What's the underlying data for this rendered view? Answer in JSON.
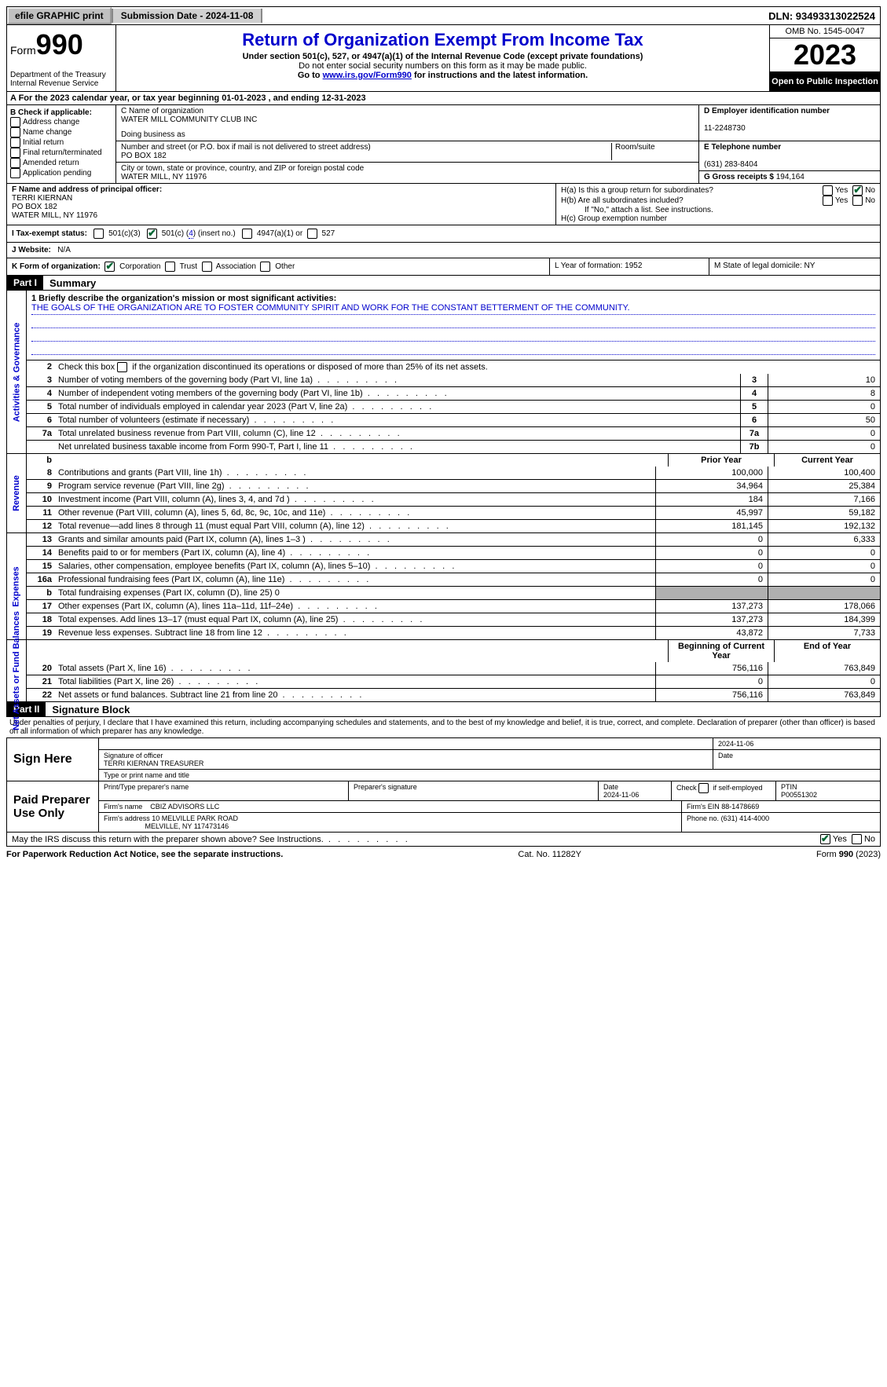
{
  "top": {
    "efile": "efile GRAPHIC print",
    "submission": "Submission Date - 2024-11-08",
    "dln": "DLN: 93493313022524"
  },
  "header": {
    "form_word": "Form",
    "form_num": "990",
    "dept": "Department of the Treasury Internal Revenue Service",
    "title": "Return of Organization Exempt From Income Tax",
    "sub1": "Under section 501(c), 527, or 4947(a)(1) of the Internal Revenue Code (except private foundations)",
    "sub2": "Do not enter social security numbers on this form as it may be made public.",
    "sub3_pre": "Go to ",
    "sub3_link": "www.irs.gov/Form990",
    "sub3_post": " for instructions and the latest information.",
    "omb": "OMB No. 1545-0047",
    "year": "2023",
    "open": "Open to Public Inspection"
  },
  "rowA": "A   For the 2023 calendar year, or tax year beginning 01-01-2023    , and ending 12-31-2023",
  "colB": {
    "title": "B Check if applicable:",
    "opts": [
      "Address change",
      "Name change",
      "Initial return",
      "Final return/terminated",
      "Amended return",
      "Application pending"
    ]
  },
  "colC": {
    "name_lbl": "C Name of organization",
    "name": "WATER MILL COMMUNITY CLUB INC",
    "dba_lbl": "Doing business as",
    "addr_lbl": "Number and street (or P.O. box if mail is not delivered to street address)",
    "addr": "PO BOX 182",
    "room_lbl": "Room/suite",
    "city_lbl": "City or town, state or province, country, and ZIP or foreign postal code",
    "city": "WATER MILL, NY  11976"
  },
  "colD": {
    "ein_lbl": "D Employer identification number",
    "ein": "11-2248730",
    "tel_lbl": "E Telephone number",
    "tel": "(631) 283-8404",
    "gross_lbl": "G Gross receipts $",
    "gross": "194,164"
  },
  "rowF": {
    "lbl": "F  Name and address of principal officer:",
    "name": "TERRI KIERNAN",
    "addr1": "PO BOX 182",
    "addr2": "WATER MILL, NY  11976"
  },
  "rowH": {
    "ha": "H(a)  Is this a group return for subordinates?",
    "hb": "H(b)  Are all subordinates included?",
    "hb_note": "If \"No,\" attach a list. See instructions.",
    "hc": "H(c)  Group exemption number"
  },
  "rowI": {
    "lbl": "I    Tax-exempt status:",
    "o1": "501(c)(3)",
    "o2a": "501(c) (",
    "o2b": "4",
    "o2c": ") (insert no.)",
    "o3": "4947(a)(1) or",
    "o4": "527"
  },
  "rowJ": {
    "lbl": "J    Website:",
    "val": "N/A"
  },
  "rowK": {
    "lbl": "K Form of organization:",
    "opts": [
      "Corporation",
      "Trust",
      "Association",
      "Other"
    ],
    "L": "L Year of formation: 1952",
    "M": "M State of legal domicile: NY"
  },
  "part1": {
    "hdr": "Part I",
    "title": "Summary"
  },
  "mission": {
    "lbl": "1  Briefly describe the organization's mission or most significant activities:",
    "text": "THE GOALS OF THE ORGANIZATION ARE TO FOSTER COMMUNITY SPIRIT AND WORK FOR THE CONSTANT BETTERMENT OF THE COMMUNITY."
  },
  "line2": "Check this box         if the organization discontinued its operations or disposed of more than 25% of its net assets.",
  "gov_lines": [
    {
      "n": "3",
      "d": "Number of voting members of the governing body (Part VI, line 1a)",
      "ln": "3",
      "v": "10"
    },
    {
      "n": "4",
      "d": "Number of independent voting members of the governing body (Part VI, line 1b)",
      "ln": "4",
      "v": "8"
    },
    {
      "n": "5",
      "d": "Total number of individuals employed in calendar year 2023 (Part V, line 2a)",
      "ln": "5",
      "v": "0"
    },
    {
      "n": "6",
      "d": "Total number of volunteers (estimate if necessary)",
      "ln": "6",
      "v": "50"
    },
    {
      "n": "7a",
      "d": "Total unrelated business revenue from Part VIII, column (C), line 12",
      "ln": "7a",
      "v": "0"
    },
    {
      "n": "",
      "d": "Net unrelated business taxable income from Form 990-T, Part I, line 11",
      "ln": "7b",
      "v": "0"
    }
  ],
  "rev_head": {
    "b": "b",
    "py": "Prior Year",
    "cy": "Current Year"
  },
  "rev_lines": [
    {
      "n": "8",
      "d": "Contributions and grants (Part VIII, line 1h)",
      "py": "100,000",
      "cy": "100,400"
    },
    {
      "n": "9",
      "d": "Program service revenue (Part VIII, line 2g)",
      "py": "34,964",
      "cy": "25,384"
    },
    {
      "n": "10",
      "d": "Investment income (Part VIII, column (A), lines 3, 4, and 7d )",
      "py": "184",
      "cy": "7,166"
    },
    {
      "n": "11",
      "d": "Other revenue (Part VIII, column (A), lines 5, 6d, 8c, 9c, 10c, and 11e)",
      "py": "45,997",
      "cy": "59,182"
    },
    {
      "n": "12",
      "d": "Total revenue—add lines 8 through 11 (must equal Part VIII, column (A), line 12)",
      "py": "181,145",
      "cy": "192,132"
    }
  ],
  "exp_lines": [
    {
      "n": "13",
      "d": "Grants and similar amounts paid (Part IX, column (A), lines 1–3 )",
      "py": "0",
      "cy": "6,333"
    },
    {
      "n": "14",
      "d": "Benefits paid to or for members (Part IX, column (A), line 4)",
      "py": "0",
      "cy": "0"
    },
    {
      "n": "15",
      "d": "Salaries, other compensation, employee benefits (Part IX, column (A), lines 5–10)",
      "py": "0",
      "cy": "0"
    },
    {
      "n": "16a",
      "d": "Professional fundraising fees (Part IX, column (A), line 11e)",
      "py": "0",
      "cy": "0"
    },
    {
      "n": "b",
      "d": "Total fundraising expenses (Part IX, column (D), line 25) 0",
      "py": "",
      "cy": "",
      "shaded": true
    },
    {
      "n": "17",
      "d": "Other expenses (Part IX, column (A), lines 11a–11d, 11f–24e)",
      "py": "137,273",
      "cy": "178,066"
    },
    {
      "n": "18",
      "d": "Total expenses. Add lines 13–17 (must equal Part IX, column (A), line 25)",
      "py": "137,273",
      "cy": "184,399"
    },
    {
      "n": "19",
      "d": "Revenue less expenses. Subtract line 18 from line 12",
      "py": "43,872",
      "cy": "7,733"
    }
  ],
  "na_head": {
    "py": "Beginning of Current Year",
    "cy": "End of Year"
  },
  "na_lines": [
    {
      "n": "20",
      "d": "Total assets (Part X, line 16)",
      "py": "756,116",
      "cy": "763,849"
    },
    {
      "n": "21",
      "d": "Total liabilities (Part X, line 26)",
      "py": "0",
      "cy": "0"
    },
    {
      "n": "22",
      "d": "Net assets or fund balances. Subtract line 21 from line 20",
      "py": "756,116",
      "cy": "763,849"
    }
  ],
  "part2": {
    "hdr": "Part II",
    "title": "Signature Block"
  },
  "perjury": "Under penalties of perjury, I declare that I have examined this return, including accompanying schedules and statements, and to the best of my knowledge and belief, it is true, correct, and complete. Declaration of preparer (other than officer) is based on all information of which preparer has any knowledge.",
  "sign": {
    "here": "Sign Here",
    "date": "2024-11-06",
    "sig_lbl": "Signature of officer",
    "officer": "TERRI KIERNAN  TREASURER",
    "type_lbl": "Type or print name and title",
    "date_lbl": "Date"
  },
  "paid": {
    "lbl": "Paid Preparer Use Only",
    "prep_name_lbl": "Print/Type preparer's name",
    "prep_sig_lbl": "Preparer's signature",
    "date_lbl": "Date",
    "date": "2024-11-06",
    "self_lbl": "Check         if self-employed",
    "ptin_lbl": "PTIN",
    "ptin": "P00551302",
    "firm_name_lbl": "Firm's name",
    "firm_name": "CBIZ ADVISORS LLC",
    "firm_ein_lbl": "Firm's EIN",
    "firm_ein": "88-1478669",
    "firm_addr_lbl": "Firm's address",
    "firm_addr1": "10 MELVILLE PARK ROAD",
    "firm_addr2": "MELVILLE, NY  117473146",
    "phone_lbl": "Phone no.",
    "phone": "(631) 414-4000"
  },
  "discuss": "May the IRS discuss this return with the preparer shown above? See Instructions.",
  "footer": {
    "left": "For Paperwork Reduction Act Notice, see the separate instructions.",
    "mid": "Cat. No. 11282Y",
    "right_pre": "Form ",
    "right_num": "990",
    "right_post": " (2023)"
  },
  "side_labels": {
    "gov": "Activities & Governance",
    "rev": "Revenue",
    "exp": "Expenses",
    "na": "Net Assets or Fund Balances"
  }
}
